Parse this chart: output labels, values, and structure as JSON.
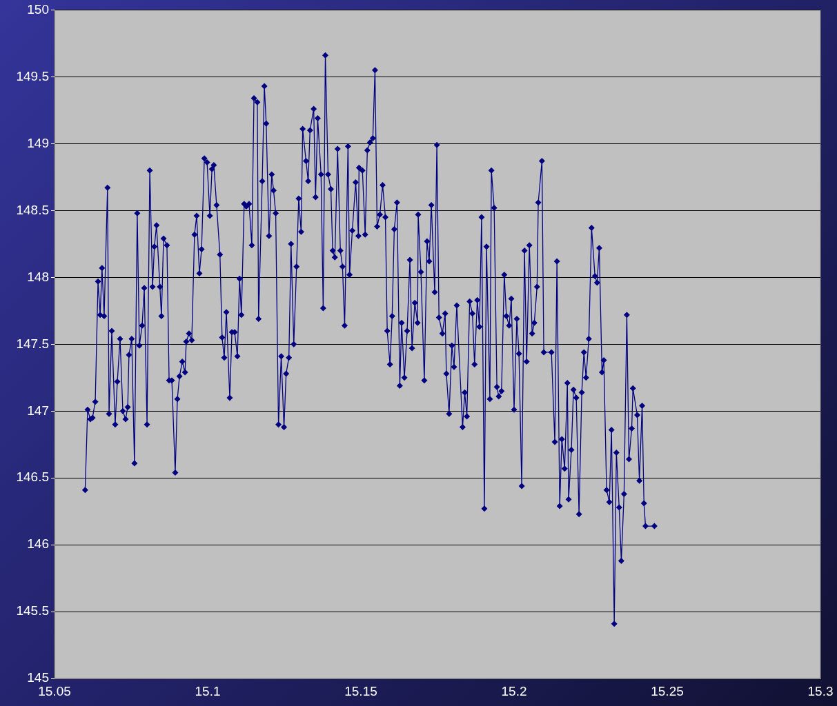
{
  "chart_data": {
    "type": "line",
    "marker": "diamond",
    "line_style": "solid",
    "grid": "y",
    "legend": false,
    "xlim": [
      15.05,
      15.3
    ],
    "xticks": [
      15.05,
      15.1,
      15.15,
      15.2,
      15.25,
      15.3
    ],
    "ylim": [
      145,
      150
    ],
    "yticks": [
      145,
      145.5,
      146,
      146.5,
      147,
      147.5,
      148,
      148.5,
      149,
      149.5,
      150
    ],
    "series": [
      {
        "color": "#000080",
        "x": [
          15.06,
          15.0608,
          15.0617,
          15.0624,
          15.0633,
          15.0642,
          15.0649,
          15.0655,
          15.0662,
          15.0673,
          15.0678,
          15.0687,
          15.0698,
          15.0705,
          15.0714,
          15.0723,
          15.0732,
          15.0739,
          15.0743,
          15.0752,
          15.0761,
          15.077,
          15.0777,
          15.0786,
          15.0793,
          15.0802,
          15.0811,
          15.082,
          15.0826,
          15.0833,
          15.0844,
          15.0849,
          15.0856,
          15.0867,
          15.0874,
          15.0883,
          15.0894,
          15.0901,
          15.0908,
          15.0917,
          15.0926,
          15.093,
          15.0939,
          15.0948,
          15.0957,
          15.0964,
          15.0973,
          15.098,
          15.0989,
          15.0998,
          15.1007,
          15.1014,
          15.102,
          15.1029,
          15.104,
          15.1047,
          15.1054,
          15.1061,
          15.1072,
          15.1079,
          15.1088,
          15.1097,
          15.1104,
          15.111,
          15.1119,
          15.1126,
          15.1135,
          15.1144,
          15.1151,
          15.1162,
          15.1166,
          15.1178,
          15.1185,
          15.1191,
          15.12,
          15.1209,
          15.1215,
          15.1222,
          15.1231,
          15.124,
          15.1249,
          15.1256,
          15.1265,
          15.1272,
          15.1281,
          15.129,
          15.1297,
          15.1305,
          15.131,
          15.1321,
          15.1328,
          15.1334,
          15.1346,
          15.1352,
          15.1359,
          15.137,
          15.1377,
          15.1384,
          15.1393,
          15.1402,
          15.1408,
          15.1415,
          15.1424,
          15.1433,
          15.144,
          15.1447,
          15.1458,
          15.1463,
          15.1472,
          15.1483,
          15.1492,
          15.1494,
          15.1505,
          15.1514,
          15.1521,
          15.153,
          15.1539,
          15.1546,
          15.1553,
          15.1562,
          15.1571,
          15.158,
          15.1586,
          15.1595,
          15.1602,
          15.1609,
          15.1618,
          15.1627,
          15.1633,
          15.1642,
          15.1651,
          15.166,
          15.1667,
          15.1676,
          15.1685,
          15.1687,
          15.1696,
          15.1707,
          15.1716,
          15.1723,
          15.173,
          15.1741,
          15.1748,
          15.1755,
          15.1766,
          15.1775,
          15.1779,
          15.1788,
          15.1797,
          15.1804,
          15.1813,
          15.1832,
          15.1839,
          15.1846,
          15.1855,
          15.1864,
          15.1871,
          15.188,
          15.1887,
          15.1894,
          15.1903,
          15.191,
          15.1921,
          15.1926,
          15.1935,
          15.1944,
          15.195,
          15.1959,
          15.1968,
          15.1975,
          15.1984,
          15.1991,
          15.2,
          15.2009,
          15.2016,
          15.2025,
          15.2034,
          15.2041,
          15.205,
          15.2059,
          15.2066,
          15.2075,
          15.2079,
          15.2091,
          15.2097,
          15.2122,
          15.2133,
          15.214,
          15.2149,
          15.2156,
          15.2165,
          15.2174,
          15.2178,
          15.2187,
          15.2194,
          15.2203,
          15.2212,
          15.2221,
          15.2228,
          15.2235,
          15.2244,
          15.2253,
          15.2264,
          15.2271,
          15.2278,
          15.2287,
          15.2293,
          15.2302,
          15.2311,
          15.2318,
          15.2327,
          15.2334,
          15.2343,
          15.235,
          15.2359,
          15.2368,
          15.2375,
          15.2384,
          15.2388,
          15.2402,
          15.2409,
          15.2418,
          15.2424,
          15.2429,
          15.2458
        ],
        "values": [
          146.41,
          147.01,
          146.94,
          146.95,
          147.07,
          147.97,
          147.72,
          148.07,
          147.71,
          148.67,
          146.98,
          147.6,
          146.9,
          147.22,
          147.54,
          147.0,
          146.94,
          147.03,
          147.42,
          147.54,
          146.61,
          148.48,
          147.49,
          147.64,
          147.92,
          146.9,
          148.8,
          147.93,
          148.23,
          148.39,
          147.93,
          147.71,
          148.29,
          148.24,
          147.23,
          147.23,
          146.54,
          147.09,
          147.26,
          147.37,
          147.29,
          147.52,
          147.58,
          147.53,
          148.32,
          148.46,
          148.03,
          148.21,
          148.89,
          148.86,
          148.46,
          148.81,
          148.84,
          148.54,
          148.17,
          147.55,
          147.4,
          147.74,
          147.1,
          147.59,
          147.59,
          147.41,
          147.99,
          147.72,
          148.55,
          148.53,
          148.55,
          148.24,
          149.34,
          149.31,
          147.69,
          148.72,
          149.43,
          149.15,
          148.31,
          148.77,
          148.65,
          148.48,
          146.9,
          147.41,
          146.88,
          147.28,
          147.4,
          148.25,
          147.5,
          148.08,
          148.59,
          148.34,
          149.11,
          148.87,
          148.72,
          149.1,
          149.26,
          148.6,
          149.19,
          148.77,
          147.77,
          149.66,
          148.77,
          148.66,
          148.2,
          148.15,
          148.96,
          148.2,
          148.08,
          147.64,
          148.98,
          148.02,
          148.35,
          148.71,
          148.31,
          148.82,
          148.8,
          148.32,
          148.95,
          149.01,
          149.04,
          149.55,
          148.38,
          148.47,
          148.69,
          148.45,
          147.6,
          147.35,
          147.71,
          148.36,
          148.56,
          147.19,
          147.66,
          147.25,
          147.6,
          148.13,
          147.47,
          147.81,
          147.66,
          148.47,
          148.04,
          147.23,
          148.27,
          148.12,
          148.54,
          147.89,
          148.99,
          147.7,
          147.58,
          147.73,
          147.28,
          146.98,
          147.49,
          147.33,
          147.79,
          146.88,
          147.14,
          146.96,
          147.82,
          147.73,
          147.35,
          147.83,
          147.63,
          148.45,
          146.27,
          148.23,
          147.09,
          148.8,
          148.52,
          147.18,
          147.11,
          147.15,
          148.02,
          147.71,
          147.64,
          147.84,
          147.01,
          147.69,
          147.43,
          146.44,
          148.2,
          147.37,
          148.24,
          147.58,
          147.66,
          147.93,
          148.56,
          148.87,
          147.44,
          147.44,
          146.77,
          148.12,
          146.29,
          146.79,
          146.57,
          147.21,
          146.34,
          146.71,
          147.16,
          147.1,
          146.23,
          147.14,
          147.44,
          147.25,
          147.54,
          148.37,
          148.01,
          147.96,
          148.22,
          147.29,
          147.38,
          146.41,
          146.32,
          146.86,
          145.41,
          146.69,
          146.28,
          145.88,
          146.38,
          147.72,
          146.64,
          146.87,
          147.17,
          146.97,
          146.48,
          147.04,
          146.31,
          146.14,
          146.14
        ]
      }
    ]
  }
}
